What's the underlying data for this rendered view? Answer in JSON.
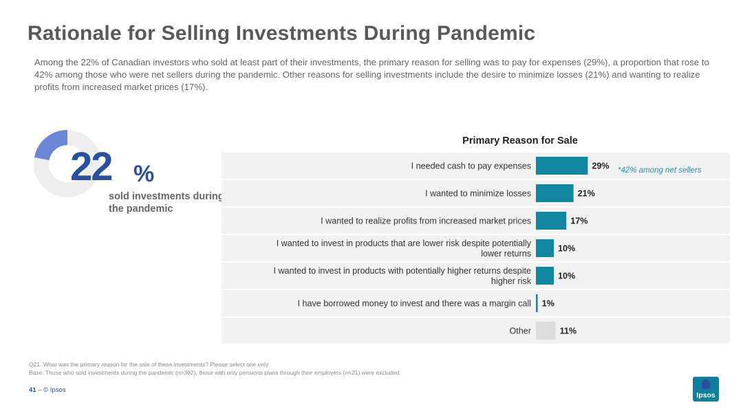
{
  "title": "Rationale for Selling Investments During Pandemic",
  "subtitle": "Among the 22% of Canadian investors who sold at least part of their investments, the primary reason for selling was to pay for expenses (29%), a proportion that rose to 42% among those who were net sellers during the pandemic. Other reasons for selling investments include the desire to minimize losses (21%) and wanting to realize profits from increased market prices (17%).",
  "highlight": {
    "value": "22",
    "percent_sign": "%",
    "label": "sold investments during the pandemic",
    "donut_fraction": 0.22,
    "donut_color": "#6b86d6",
    "track_color": "#eeeeee"
  },
  "note": "*42% among net sellers",
  "chart_data": {
    "type": "bar",
    "orientation": "horizontal",
    "title": "Primary Reason for Sale",
    "categories": [
      "I needed cash to pay expenses",
      "I wanted to minimize losses",
      "I wanted to realize profits from increased market prices",
      "I wanted to invest in products that are lower risk despite potentially lower returns",
      "I wanted to invest in products with potentially higher returns despite higher risk",
      "I have borrowed money to invest and there was a margin call",
      "Other"
    ],
    "values": [
      29,
      21,
      17,
      10,
      10,
      1,
      11
    ],
    "value_labels": [
      "29%",
      "21%",
      "17%",
      "10%",
      "10%",
      "1%",
      "11%"
    ],
    "bar_colors": [
      "#12879e",
      "#12879e",
      "#12879e",
      "#12879e",
      "#12879e",
      "#12879e",
      "#dddddd"
    ],
    "row_band_color": "#f2f2f2"
  },
  "footer": {
    "question": "Q21. What was the primary reason for the sale of these investments? Please select one only.",
    "base": "Base: Those who sold investments during the pandemic (n=392), those with only pensions plans through their employers (n=21) were excluded.",
    "page_number": "41",
    "separator": "–",
    "copyright": "© Ipsos"
  },
  "logo_text": "Ipsos"
}
